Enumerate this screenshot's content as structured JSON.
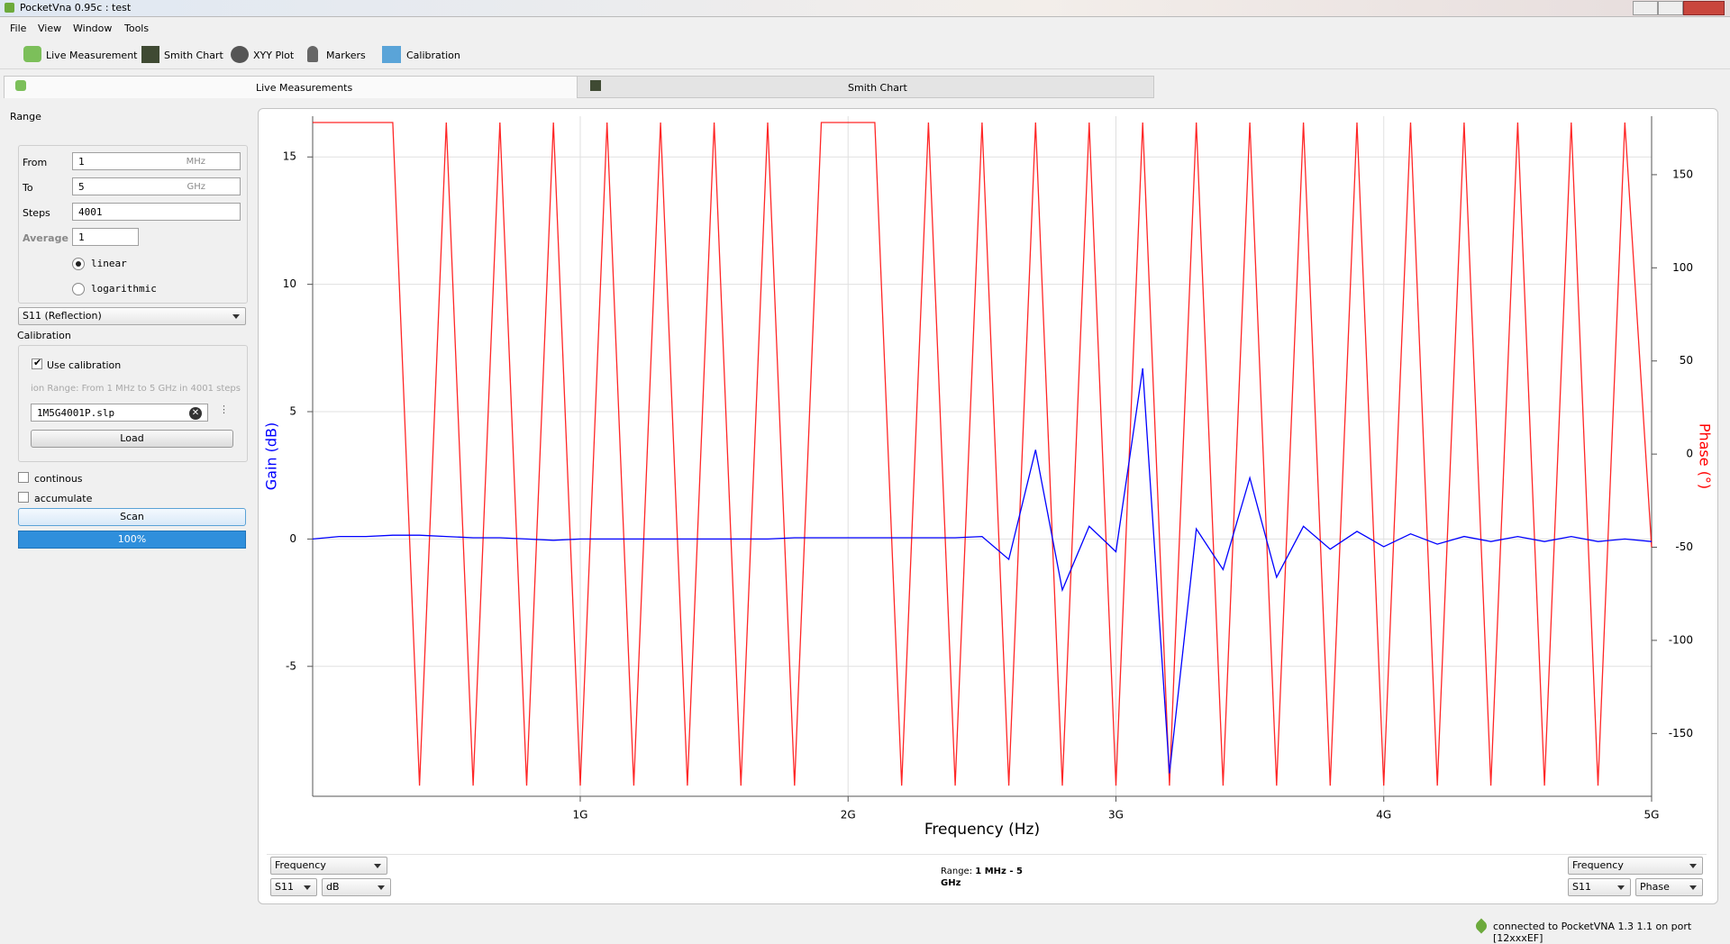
{
  "window": {
    "title": "PocketVna 0.95c : test"
  },
  "menu": [
    "File",
    "View",
    "Window",
    "Tools"
  ],
  "toolbar": [
    "Live Measurement",
    "Smith Chart",
    "XYY Plot",
    "Markers",
    "Calibration"
  ],
  "tabs": [
    "Live Measurements",
    "Smith Chart"
  ],
  "panel": {
    "range_title": "Range",
    "from_label": "From",
    "from_value": "1",
    "from_unit": "MHz",
    "to_label": "To",
    "to_value": "5",
    "to_unit": "GHz",
    "steps_label": "Steps",
    "steps_value": "4001",
    "average_label": "Average",
    "average_value": "1",
    "radio_linear": "linear",
    "radio_log": "logarithmic",
    "parameter": "S11 (Reflection)",
    "calibration_title": "Calibration",
    "use_calibration": "Use calibration",
    "calibration_range": "ion Range: From 1 MHz to 5 GHz in 4001 steps",
    "calibration_file": "1M5G4001P.slp",
    "load": "Load",
    "continous": "continous",
    "accumulate": "accumulate",
    "scan": "Scan",
    "progress": "100%"
  },
  "chart_data": {
    "type": "line",
    "xlabel": "Frequency (Hz)",
    "ylabel": "Gain (dB)",
    "y2label": "Phase (°)",
    "xlim": [
      1000000,
      5000000000
    ],
    "xticks": [
      {
        "value": 1000000000,
        "label": "1G"
      },
      {
        "value": 2000000000,
        "label": "2G"
      },
      {
        "value": 3000000000,
        "label": "3G"
      },
      {
        "value": 4000000000,
        "label": "4G"
      },
      {
        "value": 5000000000,
        "label": "5G"
      }
    ],
    "ylim": [
      -10.1,
      16.6
    ],
    "yticks": [
      -5,
      0,
      5,
      10,
      15
    ],
    "y2lim": [
      -183.7,
      181.4
    ],
    "y2ticks": [
      -150,
      -100,
      -50,
      0,
      50,
      100,
      150
    ],
    "grid": true,
    "x": [
      1000000,
      100000000,
      200000000,
      300000000,
      400000000,
      500000000,
      600000000,
      700000000,
      800000000,
      900000000,
      1000000000,
      1100000000,
      1200000000,
      1300000000,
      1400000000,
      1500000000,
      1600000000,
      1700000000,
      1800000000,
      1900000000,
      2000000000,
      2100000000,
      2200000000,
      2300000000,
      2400000000,
      2500000000,
      2600000000,
      2700000000,
      2800000000,
      2900000000,
      3000000000,
      3100000000,
      3200000000,
      3300000000,
      3400000000,
      3500000000,
      3600000000,
      3700000000,
      3800000000,
      3900000000,
      4000000000,
      4100000000,
      4200000000,
      4300000000,
      4400000000,
      4500000000,
      4600000000,
      4700000000,
      4800000000,
      4900000000,
      5000000000
    ],
    "series": [
      {
        "color": "#ff0000",
        "axis": "y2",
        "values": [
          178,
          178,
          178,
          178,
          -178,
          178,
          -178,
          178,
          -178,
          178,
          -178,
          178,
          -178,
          178,
          -178,
          178,
          -178,
          178,
          -178,
          178,
          178,
          178,
          -178,
          178,
          -178,
          178,
          -178,
          178,
          -178,
          178,
          -178,
          178,
          -178,
          178,
          -178,
          178,
          -178,
          178,
          -178,
          178,
          -178,
          178,
          -178,
          178,
          -178,
          178,
          -178,
          178,
          -178,
          178,
          -50
        ]
      },
      {
        "color": "#0000ff",
        "axis": "y",
        "values": [
          0,
          0.1,
          0.1,
          0.15,
          0.15,
          0.1,
          0.05,
          0.05,
          0,
          -0.05,
          0,
          0,
          0,
          0,
          0,
          0,
          0,
          0,
          0.05,
          0.05,
          0.05,
          0.05,
          0.05,
          0.05,
          0.05,
          0.1,
          -0.8,
          3.5,
          -2,
          0.5,
          -0.5,
          6.7,
          -9.2,
          0.4,
          -1.2,
          2.4,
          -1.5,
          0.5,
          -0.4,
          0.3,
          -0.3,
          0.2,
          -0.2,
          0.1,
          -0.1,
          0.1,
          -0.1,
          0.1,
          -0.1,
          0,
          -0.1
        ]
      }
    ]
  },
  "chart_controls": {
    "left_x": "Frequency",
    "left_param": "S11",
    "left_unit": "dB",
    "range_label": "Range:",
    "range_value": "1 MHz - 5 GHz",
    "right_x": "Frequency",
    "right_param": "S11",
    "right_unit": "Phase"
  },
  "status": "connected to PocketVNA 1.3 1.1 on port [12xxxEF]"
}
